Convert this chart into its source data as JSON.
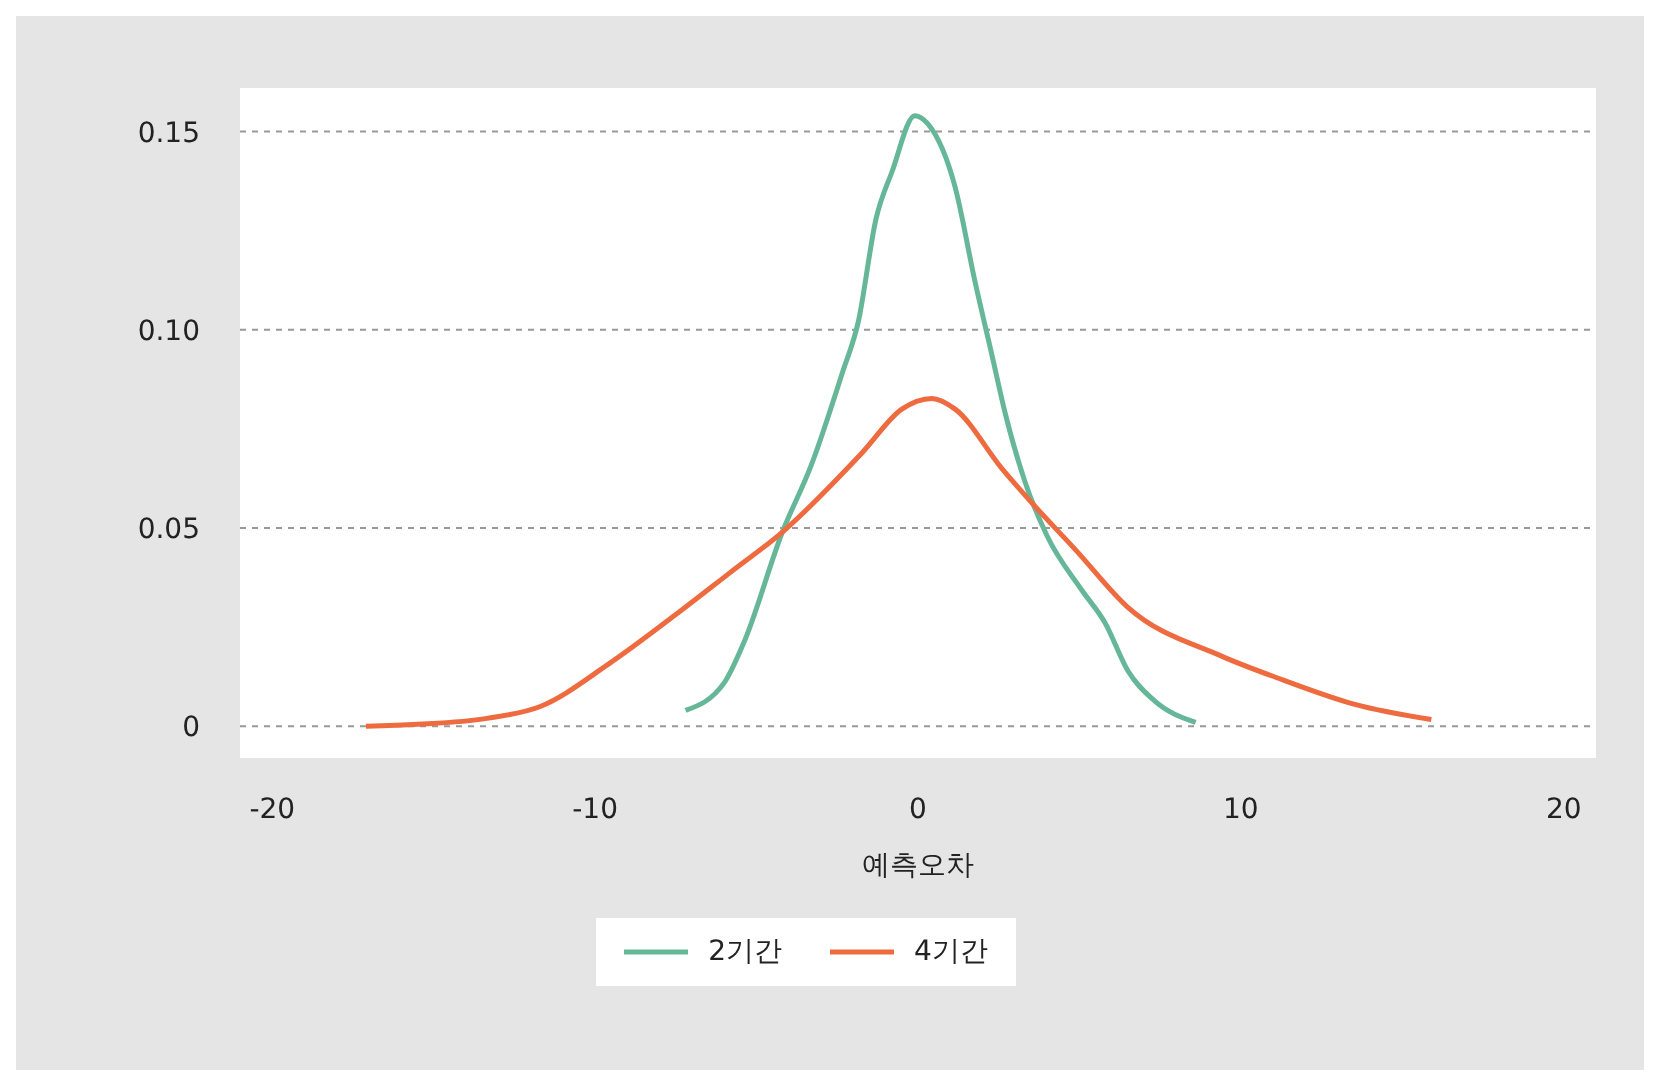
{
  "chart_data": {
    "type": "line",
    "xlabel": "예측오차",
    "xlim": [
      -21,
      21
    ],
    "xticks": [
      -20,
      -10,
      0,
      10,
      20
    ],
    "ylim": [
      -0.008,
      0.161
    ],
    "yticks": [
      0,
      0.05,
      {
        "value": 0.1,
        "label": "0.10"
      },
      0.15
    ],
    "grid": "y",
    "legend": "bottom",
    "marker": "none",
    "line_style": "solid",
    "series": [
      {
        "name": "2기간",
        "color": "#66b79a",
        "x": [
          -7.2,
          -6.0,
          -5.4,
          -4.2,
          -3.3,
          -2.35,
          -1.85,
          -1.3,
          -0.8,
          -0.1,
          0.3,
          1.15,
          1.77,
          2.28,
          2.7,
          3.3,
          4.0,
          5.06,
          5.8,
          6.5,
          7.3,
          8.6
        ],
        "values": [
          0.004,
          0.011,
          0.021,
          0.049,
          0.066,
          0.089,
          0.102,
          0.128,
          0.14,
          0.154,
          0.152,
          0.136,
          0.112,
          0.094,
          0.079,
          0.062,
          0.048,
          0.0345,
          0.026,
          0.014,
          0.0066,
          0.001
        ]
      },
      {
        "name": "4기간",
        "color": "#ee6a3f",
        "x": [
          -17.1,
          -15.5,
          -13.35,
          -11.7,
          -9.6,
          -7.45,
          -5.83,
          -4.2,
          -1.73,
          -0.5,
          0.43,
          1.15,
          2.6,
          3.6,
          4.86,
          6.5,
          9.4,
          11.3,
          13.5,
          15.9
        ],
        "values": [
          0.0,
          0.0005,
          0.002,
          0.005,
          0.0156,
          0.0285,
          0.0387,
          0.049,
          0.069,
          0.08,
          0.0827,
          0.08,
          0.065,
          0.0557,
          0.0447,
          0.03,
          0.0177,
          0.0117,
          0.0056,
          0.0017
        ]
      }
    ]
  }
}
